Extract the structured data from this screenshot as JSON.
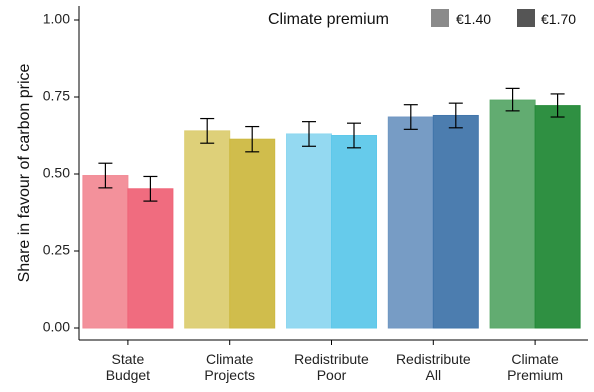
{
  "chart_data": {
    "type": "bar",
    "ylabel": "Share in favour of carbon price",
    "xlabel": "",
    "ylim": [
      0,
      1.0
    ],
    "yticks": [
      "0.00",
      "0.25",
      "0.50",
      "0.75",
      "1.00"
    ],
    "categories": [
      [
        "State",
        "Budget"
      ],
      [
        "Climate",
        "Projects"
      ],
      [
        "Redistribute",
        "Poor"
      ],
      [
        "Redistribute",
        "All"
      ],
      [
        "Climate",
        "Premium"
      ]
    ],
    "legend": {
      "title": "Climate premium",
      "placement": "top-right",
      "entries": [
        {
          "label": "€1.40",
          "color": "#8a8a8a"
        },
        {
          "label": "€1.70",
          "color": "#555555"
        }
      ]
    },
    "series": [
      {
        "name": "€1.40",
        "values": [
          0.495,
          0.64,
          0.63,
          0.685,
          0.74
        ],
        "error": [
          [
            0.455,
            0.535
          ],
          [
            0.6,
            0.68
          ],
          [
            0.59,
            0.67
          ],
          [
            0.645,
            0.725
          ],
          [
            0.705,
            0.778
          ]
        ],
        "colors": [
          "#f28b96",
          "#dccd72",
          "#8ed7f0",
          "#7097c2",
          "#5aa869"
        ]
      },
      {
        "name": "€1.70",
        "values": [
          0.452,
          0.613,
          0.625,
          0.69,
          0.722
        ],
        "error": [
          [
            0.412,
            0.492
          ],
          [
            0.572,
            0.654
          ],
          [
            0.585,
            0.665
          ],
          [
            0.65,
            0.73
          ],
          [
            0.685,
            0.76
          ]
        ],
        "colors": [
          "#ef6478",
          "#cdb942",
          "#5ec8ea",
          "#4276ab",
          "#248a38"
        ]
      }
    ],
    "grid": false
  }
}
